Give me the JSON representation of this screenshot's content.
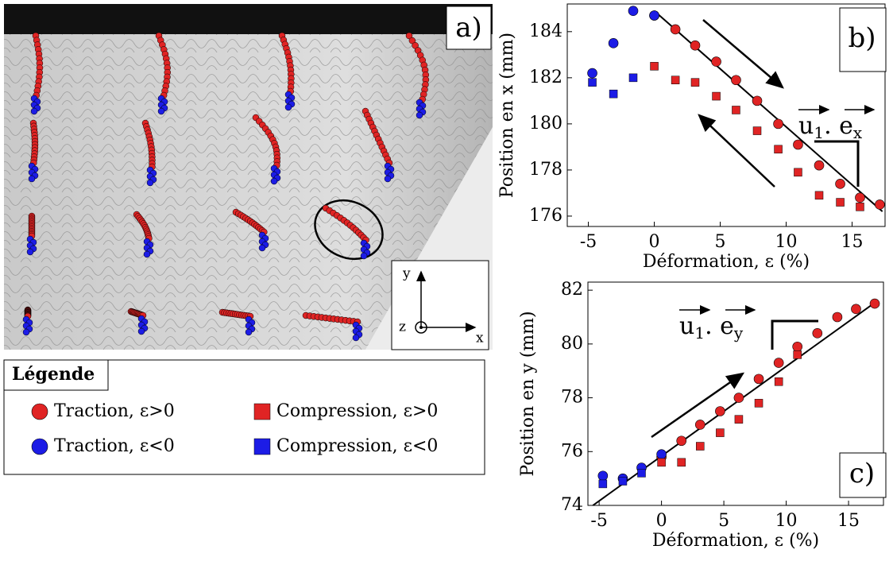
{
  "panel_a": {
    "label": "a)",
    "axis_y": "y",
    "axis_x": "x",
    "axis_z": "z"
  },
  "legend": {
    "title": "Légende"
  },
  "chart_data": [
    {
      "type": "scatter",
      "panel_label": "b)",
      "x_label": "Déformation, ε (%)",
      "y_label": "Position en x (mm)",
      "xlim": [
        -6.6,
        17.5
      ],
      "ylim": [
        175.55,
        185.2
      ],
      "xticks": [
        -5,
        0,
        5,
        10,
        15
      ],
      "yticks": [
        176,
        178,
        180,
        182,
        184
      ],
      "annotation_parts": [
        "u",
        "1",
        ". e",
        "x"
      ],
      "fit": {
        "x": [
          0,
          17.3
        ],
        "y": [
          184.9,
          176.2
        ]
      },
      "series": [
        {
          "name": "Traction, ε>0",
          "color": "#e02424",
          "marker": "circle",
          "x": [
            0,
            1.6,
            3.1,
            4.7,
            6.2,
            7.8,
            9.4,
            10.9,
            12.5,
            14.1,
            15.6,
            17.1
          ],
          "values": [
            184.7,
            184.1,
            183.4,
            182.7,
            181.9,
            181.0,
            180.0,
            179.1,
            178.2,
            177.4,
            176.8,
            176.5
          ]
        },
        {
          "name": "Traction, ε<0",
          "color": "#1c1ce6",
          "marker": "circle",
          "x": [
            -4.7,
            -3.1,
            -1.6,
            0
          ],
          "values": [
            182.2,
            183.5,
            184.9,
            184.7
          ]
        },
        {
          "name": "Compression, ε>0",
          "color": "#e02424",
          "marker": "square",
          "x": [
            0,
            1.6,
            3.1,
            4.7,
            6.2,
            7.8,
            9.4,
            10.9,
            12.5,
            14.1,
            15.6
          ],
          "values": [
            182.5,
            181.9,
            181.8,
            181.2,
            180.6,
            179.7,
            178.9,
            177.9,
            176.9,
            176.6,
            176.4
          ]
        },
        {
          "name": "Compression, ε<0",
          "color": "#1c1ce6",
          "marker": "square",
          "x": [
            -4.7,
            -3.1,
            -1.6
          ],
          "values": [
            181.8,
            181.3,
            182.0
          ]
        }
      ]
    },
    {
      "type": "scatter",
      "panel_label": "c)",
      "x_label": "Déformation, ε (%)",
      "y_label": "Position en y (mm)",
      "xlim": [
        -5.9,
        17.8
      ],
      "ylim": [
        74,
        82.3
      ],
      "xticks": [
        -5,
        0,
        5,
        10,
        15
      ],
      "yticks": [
        74,
        76,
        78,
        80,
        82
      ],
      "annotation_parts": [
        "u",
        "1",
        ". e",
        "y"
      ],
      "fit": {
        "x": [
          -5.5,
          17.3
        ],
        "y": [
          74,
          81.6
        ]
      },
      "series": [
        {
          "name": "Traction, ε>0",
          "color": "#e02424",
          "marker": "circle",
          "x": [
            0,
            1.6,
            3.1,
            4.7,
            6.2,
            7.8,
            9.4,
            10.9,
            12.5,
            14.1,
            15.6,
            17.1
          ],
          "values": [
            75.8,
            76.4,
            77.0,
            77.5,
            78.0,
            78.7,
            79.3,
            79.9,
            80.4,
            81.0,
            81.3,
            81.5
          ]
        },
        {
          "name": "Traction, ε<0",
          "color": "#1c1ce6",
          "marker": "circle",
          "x": [
            -4.7,
            -3.1,
            -1.6,
            0
          ],
          "values": [
            75.1,
            75.0,
            75.4,
            75.9
          ]
        },
        {
          "name": "Compression, ε>0",
          "color": "#e02424",
          "marker": "square",
          "x": [
            0,
            1.6,
            3.1,
            4.7,
            6.2,
            7.8,
            9.4,
            10.9
          ],
          "values": [
            75.6,
            75.6,
            76.2,
            76.7,
            77.2,
            77.8,
            78.6,
            79.6
          ]
        },
        {
          "name": "Compression, ε<0",
          "color": "#1c1ce6",
          "marker": "square",
          "x": [
            -4.7,
            -3.1,
            -1.6
          ],
          "values": [
            74.8,
            74.9,
            75.2
          ]
        }
      ]
    }
  ]
}
